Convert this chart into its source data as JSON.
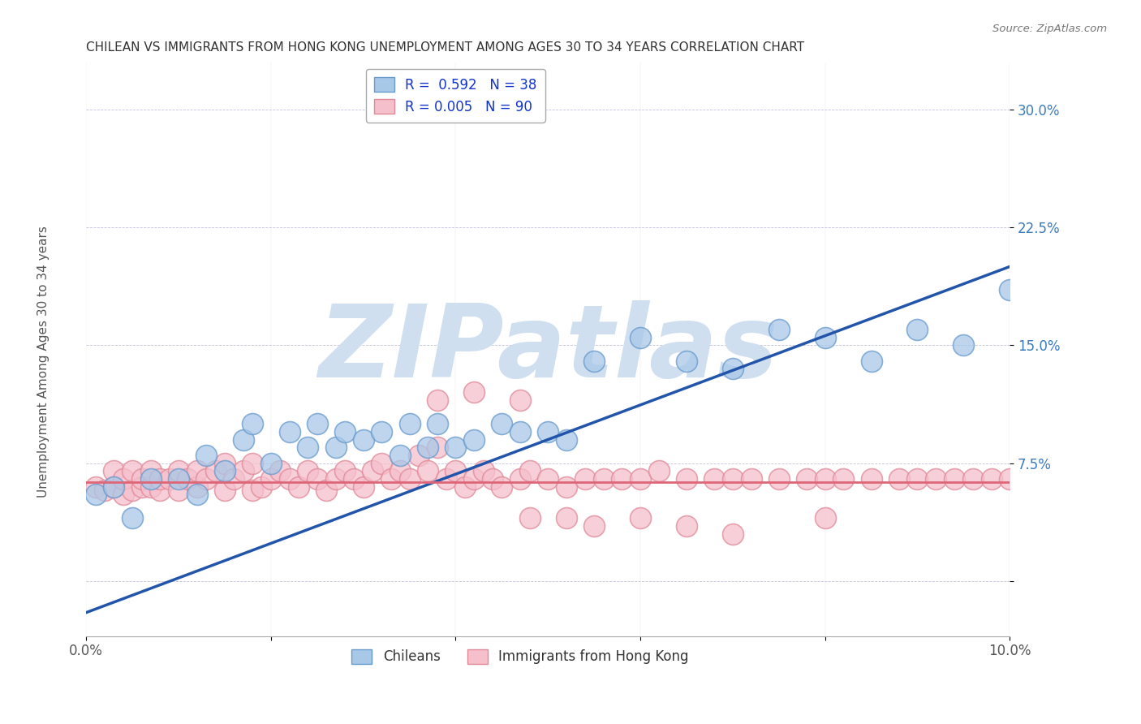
{
  "title": "CHILEAN VS IMMIGRANTS FROM HONG KONG UNEMPLOYMENT AMONG AGES 30 TO 34 YEARS CORRELATION CHART",
  "source": "Source: ZipAtlas.com",
  "xlim": [
    0.0,
    0.1
  ],
  "ylim": [
    -0.035,
    0.33
  ],
  "ylabel_ticks": [
    0.0,
    0.075,
    0.15,
    0.225,
    0.3
  ],
  "ylabel_labels": [
    "",
    "7.5%",
    "15.0%",
    "22.5%",
    "30.0%"
  ],
  "legend_r1": "R =  0.592   N = 38",
  "legend_r2": "R = 0.005   N = 90",
  "blue_color": "#a8c8e8",
  "blue_edge_color": "#6699cc",
  "pink_color": "#f5c0cc",
  "pink_edge_color": "#e08898",
  "blue_line_color": "#2255aa",
  "pink_line_color": "#dd6677",
  "watermark": "ZIPatlas",
  "watermark_color": "#d0dff0",
  "blue_points_x": [
    0.001,
    0.003,
    0.005,
    0.007,
    0.01,
    0.012,
    0.013,
    0.015,
    0.017,
    0.018,
    0.02,
    0.022,
    0.024,
    0.025,
    0.027,
    0.028,
    0.03,
    0.032,
    0.034,
    0.035,
    0.037,
    0.038,
    0.04,
    0.042,
    0.045,
    0.047,
    0.05,
    0.052,
    0.055,
    0.06,
    0.065,
    0.07,
    0.075,
    0.08,
    0.085,
    0.09,
    0.095,
    0.1
  ],
  "blue_points_y": [
    0.055,
    0.06,
    0.04,
    0.065,
    0.065,
    0.055,
    0.08,
    0.07,
    0.09,
    0.1,
    0.075,
    0.095,
    0.085,
    0.1,
    0.085,
    0.095,
    0.09,
    0.095,
    0.08,
    0.1,
    0.085,
    0.1,
    0.085,
    0.09,
    0.1,
    0.095,
    0.095,
    0.09,
    0.14,
    0.155,
    0.14,
    0.135,
    0.16,
    0.155,
    0.14,
    0.16,
    0.15,
    0.185
  ],
  "pink_points_x": [
    0.001,
    0.002,
    0.003,
    0.003,
    0.004,
    0.004,
    0.005,
    0.005,
    0.006,
    0.006,
    0.007,
    0.007,
    0.008,
    0.008,
    0.009,
    0.01,
    0.01,
    0.011,
    0.012,
    0.012,
    0.013,
    0.014,
    0.015,
    0.015,
    0.016,
    0.017,
    0.018,
    0.018,
    0.019,
    0.02,
    0.021,
    0.022,
    0.023,
    0.024,
    0.025,
    0.026,
    0.027,
    0.028,
    0.029,
    0.03,
    0.031,
    0.032,
    0.033,
    0.034,
    0.035,
    0.036,
    0.037,
    0.038,
    0.039,
    0.04,
    0.041,
    0.042,
    0.043,
    0.044,
    0.045,
    0.047,
    0.048,
    0.05,
    0.052,
    0.054,
    0.056,
    0.058,
    0.06,
    0.062,
    0.065,
    0.068,
    0.07,
    0.072,
    0.075,
    0.078,
    0.08,
    0.082,
    0.085,
    0.088,
    0.09,
    0.092,
    0.094,
    0.096,
    0.098,
    0.1,
    0.038,
    0.042,
    0.047,
    0.052,
    0.06,
    0.065,
    0.07,
    0.048,
    0.055,
    0.08
  ],
  "pink_points_y": [
    0.06,
    0.058,
    0.06,
    0.07,
    0.055,
    0.065,
    0.058,
    0.07,
    0.06,
    0.065,
    0.06,
    0.07,
    0.058,
    0.065,
    0.065,
    0.058,
    0.07,
    0.065,
    0.06,
    0.07,
    0.065,
    0.07,
    0.058,
    0.075,
    0.065,
    0.07,
    0.058,
    0.075,
    0.06,
    0.065,
    0.07,
    0.065,
    0.06,
    0.07,
    0.065,
    0.058,
    0.065,
    0.07,
    0.065,
    0.06,
    0.07,
    0.075,
    0.065,
    0.07,
    0.065,
    0.08,
    0.07,
    0.085,
    0.065,
    0.07,
    0.06,
    0.065,
    0.07,
    0.065,
    0.06,
    0.065,
    0.07,
    0.065,
    0.06,
    0.065,
    0.065,
    0.065,
    0.065,
    0.07,
    0.065,
    0.065,
    0.065,
    0.065,
    0.065,
    0.065,
    0.065,
    0.065,
    0.065,
    0.065,
    0.065,
    0.065,
    0.065,
    0.065,
    0.065,
    0.065,
    0.115,
    0.12,
    0.115,
    0.04,
    0.04,
    0.035,
    0.03,
    0.04,
    0.035,
    0.04
  ],
  "blue_line_x": [
    0.0,
    0.1
  ],
  "blue_line_y": [
    -0.02,
    0.2
  ],
  "pink_line_x": [
    0.0,
    0.1
  ],
  "pink_line_y": [
    0.063,
    0.063
  ]
}
